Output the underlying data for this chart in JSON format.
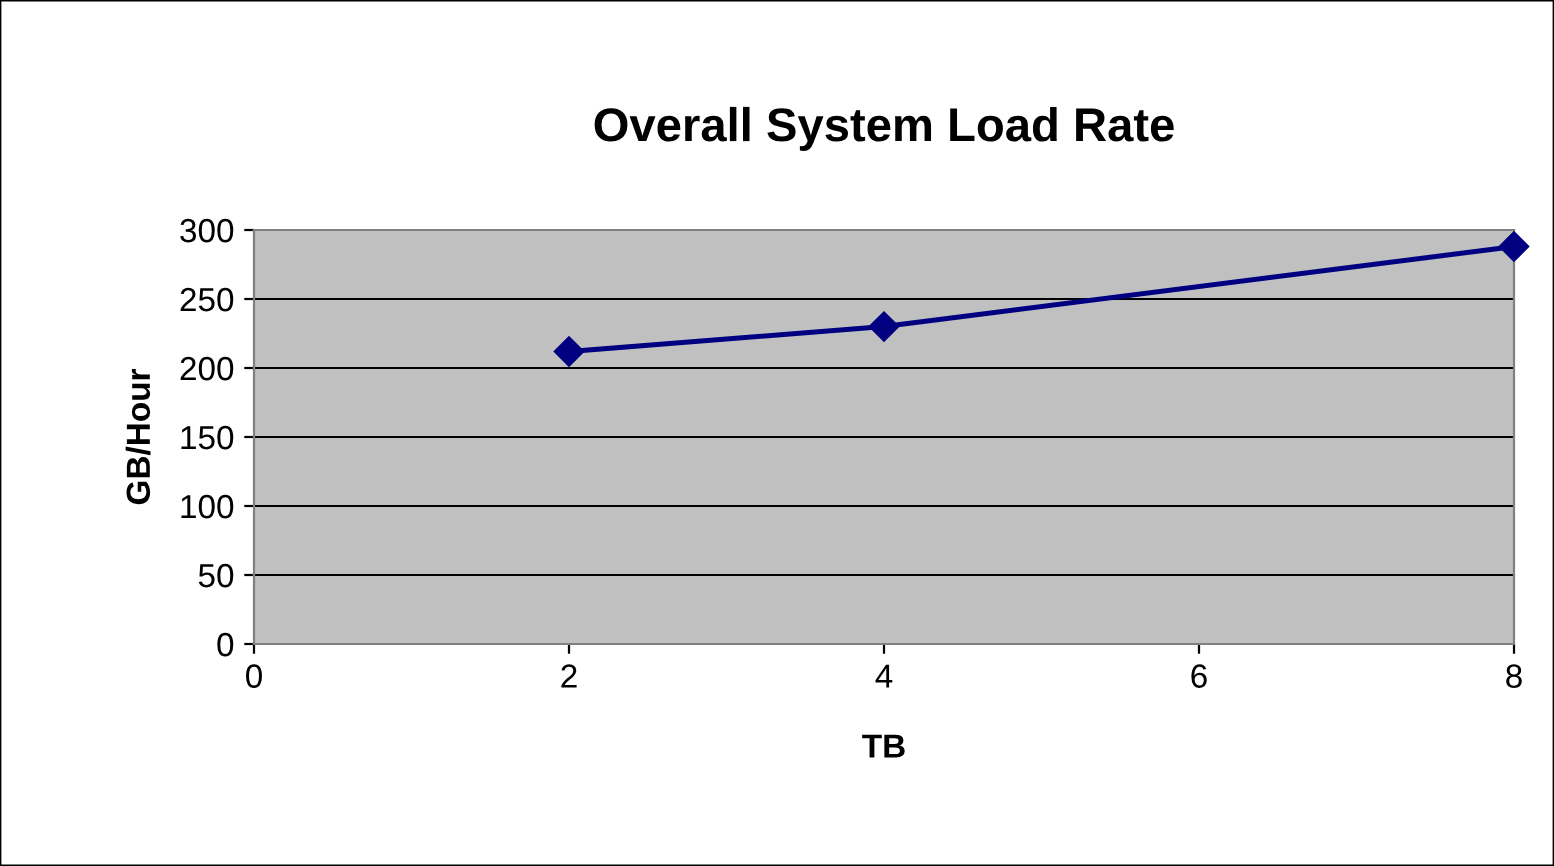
{
  "chart_data": {
    "type": "line",
    "title": "Overall System Load Rate",
    "xlabel": "TB",
    "ylabel": "GB/Hour",
    "x": [
      2,
      4,
      8
    ],
    "series": [
      {
        "color": "#000080",
        "values": [
          212,
          230,
          288
        ]
      }
    ],
    "xlim": [
      0,
      8
    ],
    "xticks": [
      0,
      2,
      4,
      6,
      8
    ],
    "ylim": [
      0,
      300
    ],
    "yticks": [
      0,
      50,
      100,
      150,
      200,
      250,
      300
    ],
    "grid": "y",
    "marker": "diamond",
    "line_style": "solid",
    "legend": false
  }
}
